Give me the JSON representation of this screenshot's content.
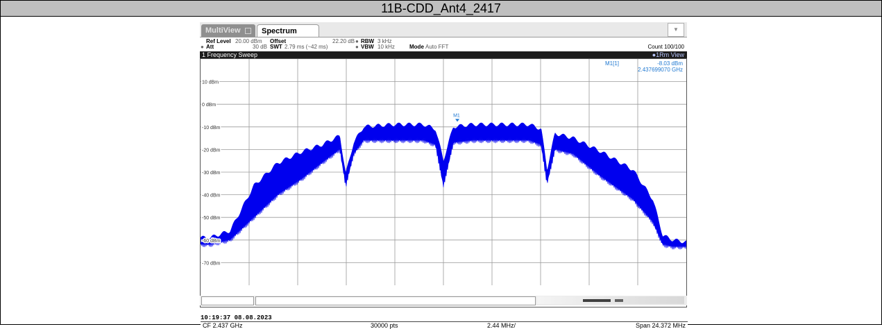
{
  "page_title": "11B-CDD_Ant4_2417",
  "tabs": [
    {
      "label": "MultiView",
      "active": false
    },
    {
      "label": "Spectrum",
      "active": true
    }
  ],
  "params": {
    "ref_level_label": "Ref Level",
    "ref_level_value": "20.00 dBm",
    "offset_label": "Offset",
    "offset_value": "22.20 dB",
    "rbw_label": "RBW",
    "rbw_value": "3 kHz",
    "att_label": "Att",
    "att_value": "30 dB",
    "swt_label": "SWT",
    "swt_value": "2.79 ms (~42 ms)",
    "vbw_label": "VBW",
    "vbw_value": "10 kHz",
    "mode_label": "Mode",
    "mode_value": "Auto FFT",
    "count": "Count 100/100"
  },
  "sweep_label": "1 Frequency Sweep",
  "view_label": "1Rm View",
  "marker": {
    "label": "M1[1]",
    "level": "-8.03 dBm",
    "freq": "2.437699070 GHz",
    "tag": "M1",
    "color": "#1f78d1"
  },
  "y_axis_labels": [
    "10 dBm",
    "0 dBm",
    "-10 dBm",
    "-20 dBm",
    "-30 dBm",
    "-40 dBm",
    "-50 dBm",
    "-60 dBm",
    "-70 dBm"
  ],
  "status": {
    "cf": "CF 2.437 GHz",
    "pts": "30000 pts",
    "div": "2.44 MHz/",
    "span": "Span 24.372 MHz"
  },
  "timestamp": "10:19:37  08.08.2023",
  "chart_data": {
    "type": "line",
    "ylim": [
      -80,
      20
    ],
    "xlim": [
      2424.814,
      2449.186
    ],
    "ylabel": "",
    "xlabel": "",
    "trace_color": "#0000ee",
    "series": [
      {
        "x": [
          2424.81,
          2425.3,
          2426.3,
          2427.5,
          2428.7,
          2429.9,
          2430.9,
          2431.8,
          2432.1,
          2432.5,
          2433.0,
          2434.5,
          2436.0,
          2436.6,
          2437.0,
          2437.5,
          2438.5,
          2440.0,
          2441.3,
          2441.9,
          2442.2,
          2442.6,
          2443.5,
          2444.9,
          2446.5,
          2447.5,
          2448.0,
          2448.5,
          2449.19
        ],
        "top": [
          -59,
          -59,
          -56,
          -36,
          -26,
          -21,
          -18,
          -14,
          -31,
          -17,
          -10,
          -9,
          -9,
          -11,
          -25,
          -10,
          -9,
          -9,
          -9,
          -11,
          -29,
          -13,
          -15,
          -21,
          -29,
          -42,
          -58,
          -60,
          -61
        ],
        "bottom": [
          -62,
          -62,
          -60,
          -50,
          -40,
          -33,
          -26,
          -20,
          -36,
          -22,
          -16,
          -16,
          -16,
          -18,
          -36,
          -17,
          -16,
          -16,
          -16,
          -18,
          -35,
          -20,
          -22,
          -32,
          -42,
          -52,
          -62,
          -63,
          -63
        ]
      }
    ]
  }
}
